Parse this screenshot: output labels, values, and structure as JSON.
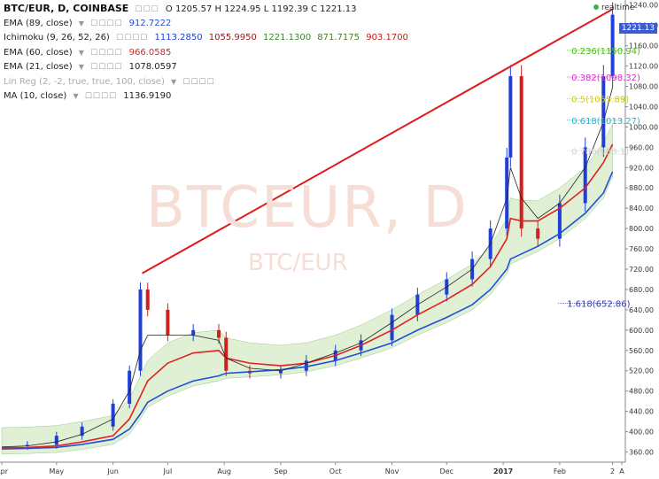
{
  "header": {
    "symbol": "BTC/EUR, D, COINBASE",
    "ohlc": "O 1205.57 H 1224.95 L 1192.39 C 1221.13",
    "realtime": "realtime"
  },
  "indicators": [
    {
      "label": "EMA (89, close)",
      "value": "912.7222",
      "color": "#1f4fd8"
    },
    {
      "label": "Ichimoku (9, 26, 52, 26)",
      "values": [
        "1113.2850",
        "1055.9950",
        "1221.1300",
        "871.7175",
        "903.1700"
      ],
      "colors": [
        "#1f3fd8",
        "#8b1a1a",
        "#3a8a2a",
        "#4a7a2a",
        "#c0201a"
      ]
    },
    {
      "label": "EMA (60, close)",
      "value": "966.0585",
      "color": "#e02020"
    },
    {
      "label": "EMA (21, close)",
      "value": "1078.0597",
      "color": "#222"
    },
    {
      "label": "Lin Reg (2, -2, true, true, 100, close)",
      "value": "",
      "color": "#aaa"
    },
    {
      "label": "MA (10, close)",
      "value": "1136.9190",
      "color": "#222"
    }
  ],
  "watermark": {
    "main": "BTCEUR, D",
    "sub": "BTC/EUR"
  },
  "last_price": "1221.13",
  "chart_data": {
    "type": "candlestick",
    "x": [
      "2016-04-01",
      "2016-04-15",
      "2016-05-01",
      "2016-05-15",
      "2016-06-01",
      "2016-06-10",
      "2016-06-16",
      "2016-06-20",
      "2016-07-01",
      "2016-07-15",
      "2016-07-29",
      "2016-08-02",
      "2016-08-15",
      "2016-09-01",
      "2016-09-15",
      "2016-10-01",
      "2016-10-15",
      "2016-11-01",
      "2016-11-15",
      "2016-12-01",
      "2016-12-15",
      "2016-12-25",
      "2017-01-03",
      "2017-01-05",
      "2017-01-11",
      "2017-01-20",
      "2017-02-01",
      "2017-02-15",
      "2017-02-25",
      "2017-03-02"
    ],
    "close": [
      372,
      374,
      392,
      410,
      455,
      520,
      680,
      640,
      590,
      600,
      585,
      520,
      515,
      520,
      540,
      560,
      580,
      630,
      670,
      700,
      740,
      800,
      940,
      1100,
      800,
      780,
      850,
      960,
      1100,
      1221
    ],
    "series": [
      {
        "name": "EMA (89, close)",
        "color": "#1f4fd8",
        "values": [
          366,
          367,
          369,
          375,
          385,
          405,
          435,
          458,
          480,
          500,
          510,
          515,
          518,
          522,
          528,
          540,
          555,
          575,
          600,
          625,
          650,
          680,
          720,
          740,
          750,
          765,
          790,
          830,
          870,
          912
        ]
      },
      {
        "name": "EMA (60, close)",
        "color": "#e02020",
        "values": [
          368,
          369,
          372,
          380,
          392,
          425,
          470,
          500,
          535,
          555,
          560,
          545,
          535,
          530,
          535,
          550,
          570,
          600,
          630,
          660,
          690,
          725,
          780,
          820,
          815,
          815,
          840,
          880,
          930,
          966
        ]
      },
      {
        "name": "EMA (21, close)",
        "color": "#222222",
        "values": [
          370,
          372,
          380,
          395,
          425,
          480,
          560,
          590,
          590,
          590,
          580,
          545,
          525,
          520,
          535,
          555,
          575,
          615,
          650,
          685,
          720,
          770,
          860,
          920,
          860,
          820,
          850,
          920,
          1010,
          1078
        ]
      }
    ],
    "trendline": {
      "from": [
        "2016-06-17",
        712
      ],
      "to": [
        "2017-03-02",
        1232
      ]
    },
    "fibonacci": [
      {
        "label": "0.236(1150.94)",
        "value": 1150.94,
        "color": "#4bb821"
      },
      {
        "label": "0.382(1098.32)",
        "value": 1098.32,
        "color": "#d633c9"
      },
      {
        "label": "0.5(1055.89)",
        "value": 1055.89,
        "color": "#cccc00"
      },
      {
        "label": "0.618(1013.27)",
        "value": 1013.27,
        "color": "#19b9d2"
      },
      {
        "label": "0.786(953.1)",
        "value": 953.1,
        "color": "#cfcfcf"
      },
      {
        "label": "1.618(652.86)",
        "value": 652.86,
        "color": "#3a3aa0"
      }
    ],
    "x_ticks": [
      "Apr",
      "May",
      "Jun",
      "Jul",
      "Aug",
      "Sep",
      "Oct",
      "Nov",
      "Dec",
      "2017",
      "Feb",
      "2",
      "A"
    ],
    "y_ticks": [
      360,
      400,
      440,
      480,
      520,
      560,
      600,
      640,
      680,
      720,
      760,
      800,
      840,
      880,
      920,
      960,
      1000,
      1040,
      1080,
      1120,
      1160,
      1200,
      1240
    ],
    "ylim": [
      340,
      1250
    ]
  }
}
